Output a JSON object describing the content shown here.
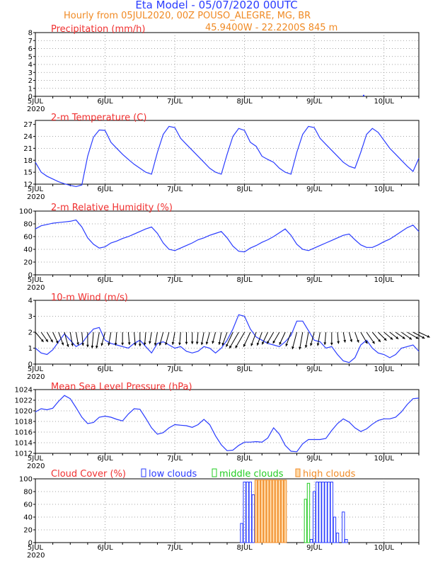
{
  "header": {
    "title": "Eta Model - 05/07/2020 00UTC",
    "subtitle": "Hourly from 05JUL2020, 00Z  POUSO_ALEGRE, MG, BR",
    "location": "45.9400W - 22.2200S    845  m"
  },
  "colors": {
    "line": "#2a3cff",
    "title": "#f03030",
    "header": "#2a3cff",
    "subtitle": "#f08a24",
    "low_clouds": "#2a3cff",
    "middle_clouds": "#22cc22",
    "high_clouds": "#f08a24",
    "wind_barb": "#000000"
  },
  "time_axis": {
    "labels": [
      "5JUL",
      "6JUL",
      "7JUL",
      "8JUL",
      "9JUL",
      "10JUL"
    ],
    "year": "2020",
    "hours_total": 132
  },
  "chart_data": [
    {
      "id": "precip",
      "type": "bar",
      "title": "Precipitation (mm/h)",
      "ylim": [
        0,
        8
      ],
      "yticks": [
        0,
        1,
        2,
        3,
        4,
        5,
        6,
        7,
        8
      ],
      "x": [
        113
      ],
      "values": [
        0.1
      ]
    },
    {
      "id": "temp",
      "type": "line",
      "title": "2-m Temperature (C)",
      "ylim": [
        12,
        28
      ],
      "yticks": [
        12,
        15,
        18,
        21,
        24,
        27
      ],
      "x": [
        0,
        2,
        4,
        6,
        8,
        10,
        12,
        14,
        16,
        18,
        20,
        22,
        24,
        26,
        28,
        30,
        32,
        34,
        36,
        38,
        40,
        42,
        44,
        46,
        48,
        50,
        52,
        54,
        56,
        58,
        60,
        62,
        64,
        66,
        68,
        70,
        72,
        74,
        76,
        78,
        80,
        82,
        84,
        86,
        88,
        90,
        92,
        94,
        96,
        98,
        100,
        102,
        104,
        106,
        108,
        110,
        112,
        114,
        116,
        118,
        120,
        122,
        124,
        126,
        128,
        130,
        132
      ],
      "values": [
        17.5,
        15,
        14,
        13.3,
        12.6,
        12.1,
        11.7,
        11.4,
        11.8,
        19,
        23.8,
        25.6,
        25.5,
        22.5,
        21,
        19.5,
        18.2,
        17,
        16,
        15,
        14.5,
        20,
        24.5,
        26.5,
        26.2,
        23.5,
        22,
        20.5,
        19,
        17.5,
        16,
        15,
        14.5,
        19.5,
        24,
        26,
        25.5,
        22.5,
        21.5,
        19,
        18.2,
        17.5,
        16,
        15,
        14.5,
        20,
        24.5,
        26.5,
        26.2,
        23.5,
        22,
        20.5,
        19,
        17.5,
        16.5,
        16,
        20,
        24.5,
        26,
        25,
        23,
        21,
        19.5,
        18,
        16.5,
        15.2,
        18.5
      ]
    },
    {
      "id": "rh",
      "type": "line",
      "title": "2-m Relative Humidity (%)",
      "ylim": [
        0,
        100
      ],
      "yticks": [
        0,
        20,
        40,
        60,
        80,
        100
      ],
      "x": [
        0,
        2,
        4,
        6,
        8,
        10,
        12,
        14,
        16,
        18,
        20,
        22,
        24,
        26,
        28,
        30,
        32,
        34,
        36,
        38,
        40,
        42,
        44,
        46,
        48,
        50,
        52,
        54,
        56,
        58,
        60,
        62,
        64,
        66,
        68,
        70,
        72,
        74,
        76,
        78,
        80,
        82,
        84,
        86,
        88,
        90,
        92,
        94,
        96,
        98,
        100,
        102,
        104,
        106,
        108,
        110,
        112,
        114,
        116,
        118,
        120,
        122,
        124,
        126,
        128,
        130,
        132
      ],
      "values": [
        72,
        77,
        79,
        81,
        82,
        83,
        84,
        86,
        75,
        58,
        48,
        42,
        44,
        50,
        53,
        57,
        60,
        64,
        68,
        72,
        75,
        65,
        50,
        40,
        38,
        42,
        46,
        50,
        55,
        58,
        62,
        65,
        68,
        58,
        45,
        37,
        36,
        42,
        46,
        51,
        55,
        60,
        66,
        72,
        62,
        48,
        40,
        38,
        42,
        46,
        50,
        54,
        58,
        62,
        64,
        55,
        47,
        43,
        43,
        47,
        52,
        56,
        62,
        68,
        74,
        78,
        68
      ]
    },
    {
      "id": "wind",
      "type": "line",
      "title": "10-m Wind (m/s)",
      "ylim": [
        0,
        4
      ],
      "yticks": [
        0,
        1,
        2,
        3,
        4
      ],
      "x": [
        0,
        2,
        4,
        6,
        8,
        10,
        12,
        14,
        16,
        18,
        20,
        22,
        24,
        26,
        28,
        30,
        32,
        34,
        36,
        38,
        40,
        42,
        44,
        46,
        48,
        50,
        52,
        54,
        56,
        58,
        60,
        62,
        64,
        66,
        68,
        70,
        72,
        74,
        76,
        78,
        80,
        82,
        84,
        86,
        88,
        90,
        92,
        94,
        96,
        98,
        100,
        102,
        104,
        106,
        108,
        110,
        112,
        114,
        116,
        118,
        120,
        122,
        124,
        126,
        128,
        130,
        132
      ],
      "values": [
        1.0,
        0.7,
        0.6,
        0.9,
        1.4,
        1.9,
        1.5,
        1.1,
        1.3,
        1.8,
        2.2,
        2.3,
        1.5,
        1.3,
        1.2,
        1.1,
        1.0,
        1.3,
        1.5,
        1.1,
        0.7,
        1.3,
        1.4,
        1.2,
        1.0,
        1.1,
        0.8,
        0.7,
        0.8,
        1.1,
        1.0,
        0.7,
        1.0,
        1.5,
        2.2,
        3.1,
        3.0,
        2.2,
        1.7,
        1.5,
        1.3,
        1.2,
        1.1,
        1.4,
        1.8,
        2.7,
        2.7,
        2.1,
        1.5,
        1.4,
        1.0,
        1.1,
        0.6,
        0.2,
        0.1,
        0.4,
        1.2,
        1.5,
        1.0,
        0.7,
        0.6,
        0.4,
        0.6,
        1.0,
        1.1,
        1.2,
        0.8
      ],
      "barb_directions_deg": [
        140,
        145,
        150,
        155,
        160,
        165,
        170,
        170,
        175,
        180,
        185,
        190,
        195,
        190,
        185,
        180,
        175,
        175,
        180,
        185,
        190,
        190,
        195,
        195,
        190,
        185,
        180,
        180,
        185,
        190,
        195,
        195,
        190,
        200,
        205,
        210,
        210,
        205,
        200,
        200,
        205,
        210,
        210,
        205,
        200,
        195,
        190,
        190,
        195,
        190,
        185,
        180,
        175,
        170,
        165,
        160,
        150,
        145,
        140,
        135,
        130,
        128,
        125,
        125,
        120,
        118,
        115
      ]
    },
    {
      "id": "mslp",
      "type": "line",
      "title": "Mean Sea Level Pressure (hPa)",
      "ylim": [
        1012,
        1024
      ],
      "yticks": [
        1012,
        1014,
        1016,
        1018,
        1020,
        1022,
        1024
      ],
      "x": [
        0,
        2,
        4,
        6,
        8,
        10,
        12,
        14,
        16,
        18,
        20,
        22,
        24,
        26,
        28,
        30,
        32,
        34,
        36,
        38,
        40,
        42,
        44,
        46,
        48,
        50,
        52,
        54,
        56,
        58,
        60,
        62,
        64,
        66,
        68,
        70,
        72,
        74,
        76,
        78,
        80,
        82,
        84,
        86,
        88,
        90,
        92,
        94,
        96,
        98,
        100,
        102,
        104,
        106,
        108,
        110,
        112,
        114,
        116,
        118,
        120,
        122,
        124,
        126,
        128,
        130,
        132
      ],
      "values": [
        1019.8,
        1020.4,
        1020.2,
        1020.5,
        1021.8,
        1022.9,
        1022.3,
        1020.6,
        1018.8,
        1017.6,
        1017.8,
        1018.8,
        1019.0,
        1018.8,
        1018.4,
        1018.1,
        1019.4,
        1020.4,
        1020.3,
        1018.6,
        1016.8,
        1015.6,
        1015.9,
        1016.8,
        1017.4,
        1017.3,
        1017.2,
        1016.9,
        1017.4,
        1018.4,
        1017.4,
        1015.3,
        1013.6,
        1012.5,
        1012.6,
        1013.5,
        1014.1,
        1014.1,
        1014.2,
        1014.1,
        1014.9,
        1016.8,
        1015.6,
        1013.5,
        1012.4,
        1012.3,
        1013.8,
        1014.6,
        1014.6,
        1014.6,
        1014.8,
        1016.3,
        1017.6,
        1018.5,
        1017.9,
        1016.8,
        1016.1,
        1016.6,
        1017.5,
        1018.2,
        1018.5,
        1018.5,
        1018.8,
        1019.8,
        1021.2,
        1022.3,
        1022.4
      ]
    },
    {
      "id": "cloud",
      "type": "bar",
      "title": "Cloud Cover (%)",
      "ylim": [
        0,
        100
      ],
      "yticks": [
        0,
        20,
        40,
        60,
        80,
        100
      ],
      "legend": [
        "low clouds",
        "middle clouds",
        "high clouds"
      ],
      "series": [
        {
          "name": "low clouds",
          "x": [
            71,
            72,
            73,
            74,
            75,
            95,
            96,
            97,
            98,
            99,
            100,
            101,
            102,
            103,
            104,
            106,
            107
          ],
          "values": [
            30,
            95,
            95,
            95,
            75,
            5,
            80,
            95,
            95,
            95,
            95,
            95,
            95,
            40,
            15,
            48,
            5
          ]
        },
        {
          "name": "middle clouds",
          "x": [
            93,
            94
          ],
          "values": [
            68,
            93
          ]
        },
        {
          "name": "high clouds",
          "x": [
            76,
            77,
            78,
            79,
            80,
            81,
            82,
            83,
            84,
            85,
            86
          ],
          "values": [
            98,
            98,
            98,
            98,
            98,
            98,
            98,
            98,
            98,
            98,
            98
          ]
        }
      ]
    }
  ]
}
